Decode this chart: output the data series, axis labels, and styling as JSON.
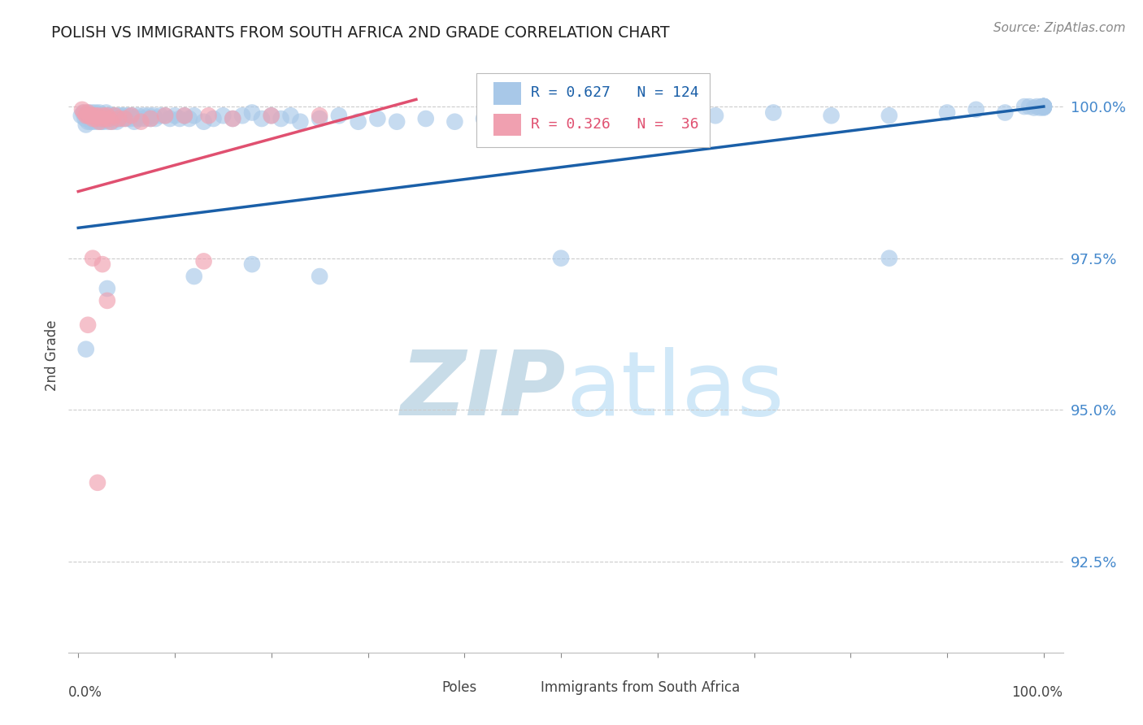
{
  "title": "POLISH VS IMMIGRANTS FROM SOUTH AFRICA 2ND GRADE CORRELATION CHART",
  "source": "Source: ZipAtlas.com",
  "ylabel": "2nd Grade",
  "blue_color": "#a8c8e8",
  "pink_color": "#f0a0b0",
  "blue_line_color": "#1a5fa8",
  "pink_line_color": "#e05070",
  "legend_blue_R": "0.627",
  "legend_blue_N": "124",
  "legend_pink_R": "0.326",
  "legend_pink_N": "36",
  "watermark_zip_color": "#c8dce8",
  "watermark_atlas_color": "#d0e8f8",
  "background_color": "#ffffff",
  "ytick_color": "#4488cc",
  "blue_x": [
    0.003,
    0.005,
    0.007,
    0.008,
    0.01,
    0.01,
    0.01,
    0.012,
    0.012,
    0.013,
    0.014,
    0.015,
    0.015,
    0.016,
    0.017,
    0.018,
    0.019,
    0.02,
    0.02,
    0.021,
    0.022,
    0.022,
    0.023,
    0.024,
    0.025,
    0.025,
    0.026,
    0.027,
    0.028,
    0.029,
    0.03,
    0.03,
    0.031,
    0.032,
    0.033,
    0.034,
    0.035,
    0.036,
    0.037,
    0.038,
    0.04,
    0.041,
    0.042,
    0.043,
    0.045,
    0.046,
    0.048,
    0.05,
    0.052,
    0.054,
    0.056,
    0.058,
    0.06,
    0.062,
    0.065,
    0.068,
    0.07,
    0.073,
    0.075,
    0.078,
    0.08,
    0.085,
    0.09,
    0.095,
    0.1,
    0.105,
    0.11,
    0.115,
    0.12,
    0.13,
    0.14,
    0.15,
    0.16,
    0.17,
    0.18,
    0.19,
    0.2,
    0.21,
    0.22,
    0.23,
    0.25,
    0.27,
    0.29,
    0.31,
    0.33,
    0.36,
    0.39,
    0.42,
    0.46,
    0.5,
    0.55,
    0.6,
    0.66,
    0.72,
    0.78,
    0.84,
    0.9,
    0.93,
    0.96,
    0.98,
    0.985,
    0.99,
    0.993,
    0.996,
    0.998,
    0.999,
    1.0,
    1.0,
    1.0,
    1.0,
    1.0,
    1.0,
    1.0,
    1.0,
    1.0,
    1.0,
    1.0,
    1.0,
    1.0,
    1.0
  ],
  "blue_y": [
    0.9985,
    0.999,
    0.998,
    0.997,
    0.9975,
    0.9985,
    0.999,
    0.998,
    0.9985,
    0.9975,
    0.999,
    0.9985,
    0.998,
    0.9975,
    0.9985,
    0.999,
    0.998,
    0.9985,
    0.9975,
    0.998,
    0.9985,
    0.999,
    0.998,
    0.9975,
    0.9985,
    0.998,
    0.9975,
    0.9985,
    0.998,
    0.999,
    0.998,
    0.9985,
    0.9975,
    0.998,
    0.9985,
    0.998,
    0.9975,
    0.9985,
    0.998,
    0.9985,
    0.9975,
    0.998,
    0.9985,
    0.998,
    0.9985,
    0.998,
    0.9985,
    0.998,
    0.9985,
    0.998,
    0.9985,
    0.9975,
    0.998,
    0.9985,
    0.998,
    0.9985,
    0.998,
    0.9985,
    0.998,
    0.9985,
    0.998,
    0.9985,
    0.9985,
    0.998,
    0.9985,
    0.998,
    0.9985,
    0.998,
    0.9985,
    0.9975,
    0.998,
    0.9985,
    0.998,
    0.9985,
    0.999,
    0.998,
    0.9985,
    0.998,
    0.9985,
    0.9975,
    0.998,
    0.9985,
    0.9975,
    0.998,
    0.9975,
    0.998,
    0.9975,
    0.998,
    0.9975,
    0.9985,
    0.9985,
    0.998,
    0.9985,
    0.999,
    0.9985,
    0.9985,
    0.999,
    0.9995,
    0.999,
    1.0,
    1.0,
    0.9998,
    1.0,
    0.9998,
    1.0,
    1.0,
    1.0,
    0.9998,
    1.0,
    1.0,
    1.0,
    1.0,
    1.0,
    1.0,
    1.0,
    1.0,
    1.0,
    1.0,
    1.0,
    1.0
  ],
  "blue_outliers_x": [
    0.008,
    0.03,
    0.12,
    0.18,
    0.25,
    0.5,
    0.84
  ],
  "blue_outliers_y": [
    0.96,
    0.97,
    0.972,
    0.974,
    0.972,
    0.975,
    0.975
  ],
  "pink_x": [
    0.004,
    0.006,
    0.008,
    0.01,
    0.01,
    0.012,
    0.014,
    0.015,
    0.017,
    0.018,
    0.02,
    0.022,
    0.024,
    0.026,
    0.028,
    0.03,
    0.032,
    0.034,
    0.038,
    0.042,
    0.048,
    0.055,
    0.065,
    0.075,
    0.09,
    0.11,
    0.135,
    0.16,
    0.2,
    0.25,
    0.13,
    0.02,
    0.03,
    0.01,
    0.015,
    0.025
  ],
  "pink_y": [
    0.9995,
    0.999,
    0.9985,
    0.9985,
    0.999,
    0.9985,
    0.9985,
    0.998,
    0.9985,
    0.998,
    0.9985,
    0.9975,
    0.998,
    0.9985,
    0.998,
    0.9985,
    0.998,
    0.9975,
    0.9985,
    0.998,
    0.998,
    0.9985,
    0.9975,
    0.998,
    0.9985,
    0.9985,
    0.9985,
    0.998,
    0.9985,
    0.9985,
    0.9745,
    0.938,
    0.968,
    0.964,
    0.975,
    0.974
  ],
  "blue_line_x0": 0.0,
  "blue_line_y0": 0.98,
  "blue_line_x1": 1.0,
  "blue_line_y1": 1.0,
  "pink_line_x0": 0.0,
  "pink_line_y0": 0.986,
  "pink_line_x1": 0.3,
  "pink_line_y1": 0.999,
  "xlim_min": -0.01,
  "xlim_max": 1.02,
  "ylim_min": 0.91,
  "ylim_max": 1.008,
  "yticks": [
    0.925,
    0.95,
    0.975,
    1.0
  ],
  "ytick_labels": [
    "92.5%",
    "95.0%",
    "97.5%",
    "100.0%"
  ]
}
